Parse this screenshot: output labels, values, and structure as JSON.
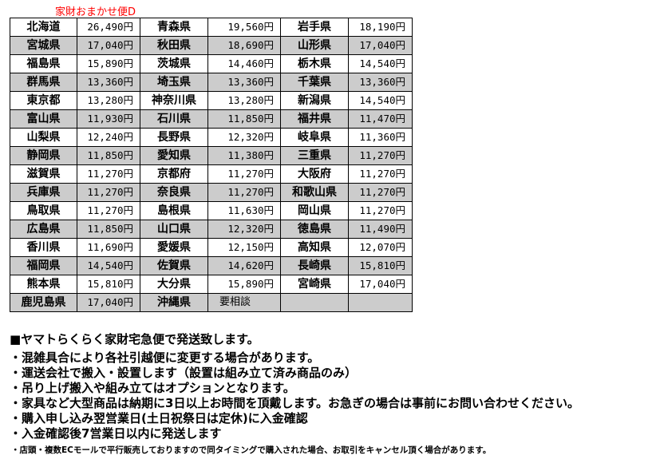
{
  "title": "家財おまかせ便D",
  "table": {
    "rows": [
      [
        [
          "北海道",
          "26,490円"
        ],
        [
          "青森県",
          "19,560円"
        ],
        [
          "岩手県",
          "18,190円"
        ]
      ],
      [
        [
          "宮城県",
          "17,040円"
        ],
        [
          "秋田県",
          "18,690円"
        ],
        [
          "山形県",
          "17,040円"
        ]
      ],
      [
        [
          "福島県",
          "15,890円"
        ],
        [
          "茨城県",
          "14,460円"
        ],
        [
          "栃木県",
          "14,540円"
        ]
      ],
      [
        [
          "群馬県",
          "13,360円"
        ],
        [
          "埼玉県",
          "13,360円"
        ],
        [
          "千葉県",
          "13,360円"
        ]
      ],
      [
        [
          "東京都",
          "13,280円"
        ],
        [
          "神奈川県",
          "13,280円"
        ],
        [
          "新潟県",
          "14,540円"
        ]
      ],
      [
        [
          "富山県",
          "11,930円"
        ],
        [
          "石川県",
          "11,850円"
        ],
        [
          "福井県",
          "11,470円"
        ]
      ],
      [
        [
          "山梨県",
          "12,240円"
        ],
        [
          "長野県",
          "12,320円"
        ],
        [
          "岐阜県",
          "11,360円"
        ]
      ],
      [
        [
          "静岡県",
          "11,850円"
        ],
        [
          "愛知県",
          "11,380円"
        ],
        [
          "三重県",
          "11,270円"
        ]
      ],
      [
        [
          "滋賀県",
          "11,270円"
        ],
        [
          "京都府",
          "11,270円"
        ],
        [
          "大阪府",
          "11,270円"
        ]
      ],
      [
        [
          "兵庫県",
          "11,270円"
        ],
        [
          "奈良県",
          "11,270円"
        ],
        [
          "和歌山県",
          "11,270円"
        ]
      ],
      [
        [
          "鳥取県",
          "11,270円"
        ],
        [
          "島根県",
          "11,630円"
        ],
        [
          "岡山県",
          "11,270円"
        ]
      ],
      [
        [
          "広島県",
          "11,850円"
        ],
        [
          "山口県",
          "12,320円"
        ],
        [
          "徳島県",
          "11,490円"
        ]
      ],
      [
        [
          "香川県",
          "11,690円"
        ],
        [
          "愛媛県",
          "12,150円"
        ],
        [
          "高知県",
          "12,070円"
        ]
      ],
      [
        [
          "福岡県",
          "14,540円"
        ],
        [
          "佐賀県",
          "14,620円"
        ],
        [
          "長崎県",
          "15,810円"
        ]
      ],
      [
        [
          "熊本県",
          "15,810円"
        ],
        [
          "大分県",
          "15,890円"
        ],
        [
          "宮崎県",
          "17,040円"
        ]
      ],
      [
        [
          "鹿児島県",
          "17,040円"
        ],
        [
          "沖縄県",
          "要相談"
        ],
        [
          "",
          ""
        ]
      ]
    ]
  },
  "heading": "■ヤマトらくらく家財宅急便で発送致します。",
  "bullets": [
    "・混雑具合により各社引越便に変更する場合があります。",
    "・運送会社で搬入・設置します（設置は組み立て済み商品のみ）",
    "・吊り上げ搬入や組み立てはオプションとなります。",
    "・家具など大型商品は納期に3日以上お時間を頂戴します。お急ぎの場合は事前にお問い合わせください。",
    "・購入申し込み翌営業日(土日祝祭日は定休)に入金確認",
    "・入金確認後7営業日以内に発送します"
  ],
  "footnote": "・店頭・複数ECモールで平行販売しておりますので同タイミングで購入された場合、お取引をキャンセル頂く場合があります。",
  "colors": {
    "title": "#ff0000",
    "row_alt": "#cccccc"
  }
}
